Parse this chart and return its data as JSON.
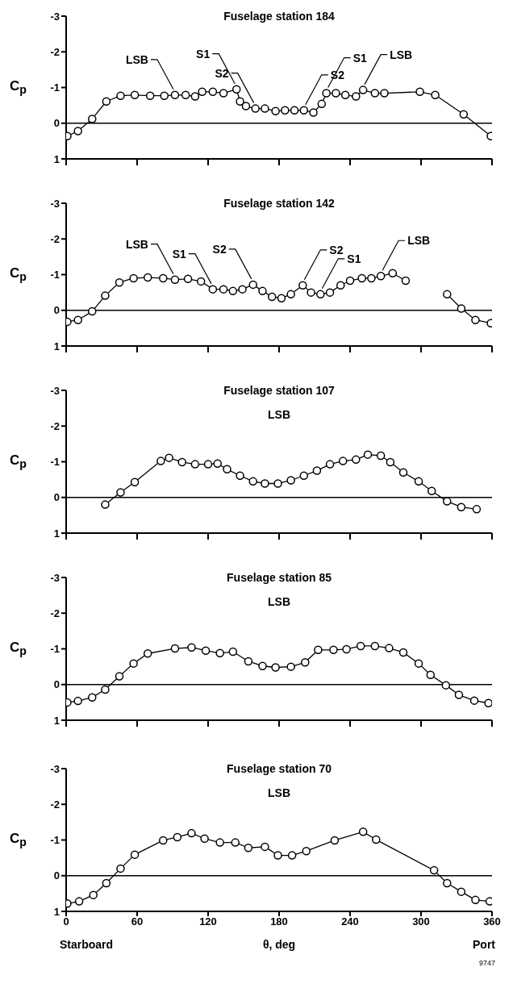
{
  "chart_data": [
    {
      "type": "line",
      "title": "Fuselage station 184",
      "ylabel": "C$_{p}$",
      "color": "#000000",
      "marker": "circle",
      "tick_labels": "y",
      "xlim": [
        0,
        360
      ],
      "xticks": [
        0,
        60,
        120,
        180,
        240,
        300,
        360
      ],
      "ylim": [
        1,
        -3
      ],
      "yticks": [
        -3,
        -2,
        -1,
        0,
        1
      ],
      "ref_lines": [
        {
          "axis": "y",
          "value": 0
        }
      ],
      "x": [
        1,
        10,
        22,
        34,
        46,
        58,
        71,
        83,
        92,
        101,
        109,
        115,
        124,
        133,
        144,
        147,
        152,
        160,
        168,
        177,
        185,
        193,
        201,
        209,
        216,
        220,
        228,
        236,
        245,
        251,
        261,
        269,
        299,
        312,
        336,
        359
      ],
      "values": [
        0.36,
        0.22,
        -0.12,
        -0.61,
        -0.77,
        -0.79,
        -0.77,
        -0.77,
        -0.79,
        -0.79,
        -0.75,
        -0.88,
        -0.88,
        -0.84,
        -0.95,
        -0.61,
        -0.48,
        -0.41,
        -0.41,
        -0.34,
        -0.36,
        -0.36,
        -0.36,
        -0.3,
        -0.54,
        -0.84,
        -0.84,
        -0.79,
        -0.75,
        -0.93,
        -0.84,
        -0.84,
        -0.88,
        -0.79,
        -0.25,
        0.36
      ],
      "annotations": [
        {
          "text": "LSB",
          "x": 92,
          "y": -0.79
        },
        {
          "text": "S1",
          "x": 144,
          "y": -0.95
        },
        {
          "text": "S2",
          "x": 160,
          "y": -0.41
        },
        {
          "text": "S2",
          "x": 201,
          "y": -0.36
        },
        {
          "text": "S1",
          "x": 220,
          "y": -0.84
        },
        {
          "text": "LSB",
          "x": 251,
          "y": -0.93
        }
      ]
    },
    {
      "type": "line",
      "title": "Fuselage station 142",
      "ylabel": "C$_{p}$",
      "color": "#000000",
      "marker": "circle",
      "tick_labels": "y",
      "xlim": [
        0,
        360
      ],
      "xticks": [
        0,
        60,
        120,
        180,
        240,
        300,
        360
      ],
      "ylim": [
        1,
        -3
      ],
      "yticks": [
        -3,
        -2,
        -1,
        0,
        1
      ],
      "ref_lines": [
        {
          "axis": "y",
          "value": 0
        }
      ],
      "x": [
        1,
        10,
        22,
        33,
        45,
        57,
        69,
        82,
        92,
        103,
        114,
        124,
        133,
        141,
        149,
        158,
        166,
        174,
        182,
        190,
        200,
        207,
        215,
        223,
        232,
        240,
        250,
        258,
        266,
        276,
        287,
        305,
        322,
        334,
        346,
        359
      ],
      "values": [
        0.32,
        0.27,
        0.03,
        -0.41,
        -0.78,
        -0.9,
        -0.92,
        -0.9,
        -0.86,
        -0.88,
        -0.81,
        -0.59,
        -0.59,
        -0.54,
        -0.59,
        -0.72,
        -0.54,
        -0.38,
        -0.34,
        -0.45,
        -0.7,
        -0.5,
        -0.45,
        -0.5,
        -0.7,
        -0.83,
        -0.9,
        -0.9,
        -0.96,
        -1.04,
        -0.83,
        null,
        -0.45,
        -0.05,
        0.27,
        0.36
      ],
      "annotations": [
        {
          "text": "LSB",
          "x": 92,
          "y": -0.86
        },
        {
          "text": "S1",
          "x": 124,
          "y": -0.59
        },
        {
          "text": "S2",
          "x": 158,
          "y": -0.72
        },
        {
          "text": "S2",
          "x": 200,
          "y": -0.7
        },
        {
          "text": "S1",
          "x": 215,
          "y": -0.45
        },
        {
          "text": "LSB",
          "x": 266,
          "y": -0.96
        }
      ]
    },
    {
      "type": "line",
      "title": "Fuselage station 107",
      "ylabel": "C$_{p}$",
      "color": "#000000",
      "marker": "circle",
      "tick_labels": "y",
      "xlim": [
        0,
        360
      ],
      "xticks": [
        0,
        60,
        120,
        180,
        240,
        300,
        360
      ],
      "ylim": [
        1,
        -3
      ],
      "yticks": [
        -3,
        -2,
        -1,
        0,
        1
      ],
      "ref_lines": [
        {
          "axis": "y",
          "value": 0
        }
      ],
      "x": [
        33,
        46,
        58,
        80,
        87,
        98,
        109,
        120,
        128,
        136,
        147,
        158,
        168,
        179,
        190,
        201,
        212,
        223,
        234,
        245,
        255,
        266,
        274,
        285,
        298,
        309,
        322,
        334,
        347
      ],
      "values": [
        0.2,
        -0.14,
        -0.43,
        -1.02,
        -1.11,
        -0.99,
        -0.93,
        -0.93,
        -0.95,
        -0.79,
        -0.61,
        -0.45,
        -0.39,
        -0.39,
        -0.48,
        -0.61,
        -0.75,
        -0.93,
        -1.02,
        -1.06,
        -1.2,
        -1.17,
        -0.99,
        -0.7,
        -0.45,
        -0.18,
        0.11,
        0.27,
        0.33
      ],
      "annotations": [
        "LSB"
      ]
    },
    {
      "type": "line",
      "title": "Fuselage station 85",
      "ylabel": "C$_{p}$",
      "color": "#000000",
      "marker": "circle",
      "tick_labels": "y",
      "xlim": [
        0,
        360
      ],
      "xticks": [
        0,
        60,
        120,
        180,
        240,
        300,
        360
      ],
      "ylim": [
        1,
        -3
      ],
      "yticks": [
        -3,
        -2,
        -1,
        0,
        1
      ],
      "ref_lines": [
        {
          "axis": "y",
          "value": 0
        }
      ],
      "x": [
        1,
        10,
        22,
        33,
        45,
        57,
        69,
        92,
        106,
        118,
        130,
        141,
        154,
        166,
        177,
        190,
        202,
        213,
        226,
        237,
        249,
        261,
        273,
        285,
        298,
        308,
        321,
        332,
        345,
        357
      ],
      "values": [
        0.5,
        0.46,
        0.36,
        0.14,
        -0.23,
        -0.59,
        -0.87,
        -1.01,
        -1.04,
        -0.95,
        -0.88,
        -0.92,
        -0.65,
        -0.52,
        -0.48,
        -0.5,
        -0.62,
        -0.97,
        -0.97,
        -0.99,
        -1.08,
        -1.08,
        -1.02,
        -0.9,
        -0.59,
        -0.27,
        0.02,
        0.29,
        0.45,
        0.52
      ],
      "annotations": [
        "LSB"
      ]
    },
    {
      "type": "line",
      "title": "Fuselage station 70",
      "ylabel": "C$_{p}$",
      "xlabel": "θ, deg",
      "color": "#000000",
      "marker": "circle",
      "xlim": [
        0,
        360
      ],
      "xticks": [
        0,
        60,
        120,
        180,
        240,
        300,
        360
      ],
      "ylim": [
        1,
        -3
      ],
      "yticks": [
        -3,
        -2,
        -1,
        0,
        1
      ],
      "ref_lines": [
        {
          "axis": "y",
          "value": 0
        }
      ],
      "x": [
        1,
        11,
        23,
        34,
        46,
        58,
        82,
        94,
        106,
        117,
        130,
        143,
        154,
        168,
        179,
        191,
        203,
        227,
        251,
        262,
        311,
        322,
        334,
        346,
        358
      ],
      "values": [
        0.78,
        0.72,
        0.54,
        0.21,
        -0.2,
        -0.59,
        -0.99,
        -1.08,
        -1.19,
        -1.04,
        -0.93,
        -0.93,
        -0.78,
        -0.81,
        -0.57,
        -0.57,
        -0.69,
        -0.99,
        -1.23,
        -1.01,
        -0.15,
        0.21,
        0.45,
        0.68,
        0.72
      ],
      "annotations": [
        "LSB",
        "Starboard",
        "Port",
        "9747"
      ]
    }
  ]
}
